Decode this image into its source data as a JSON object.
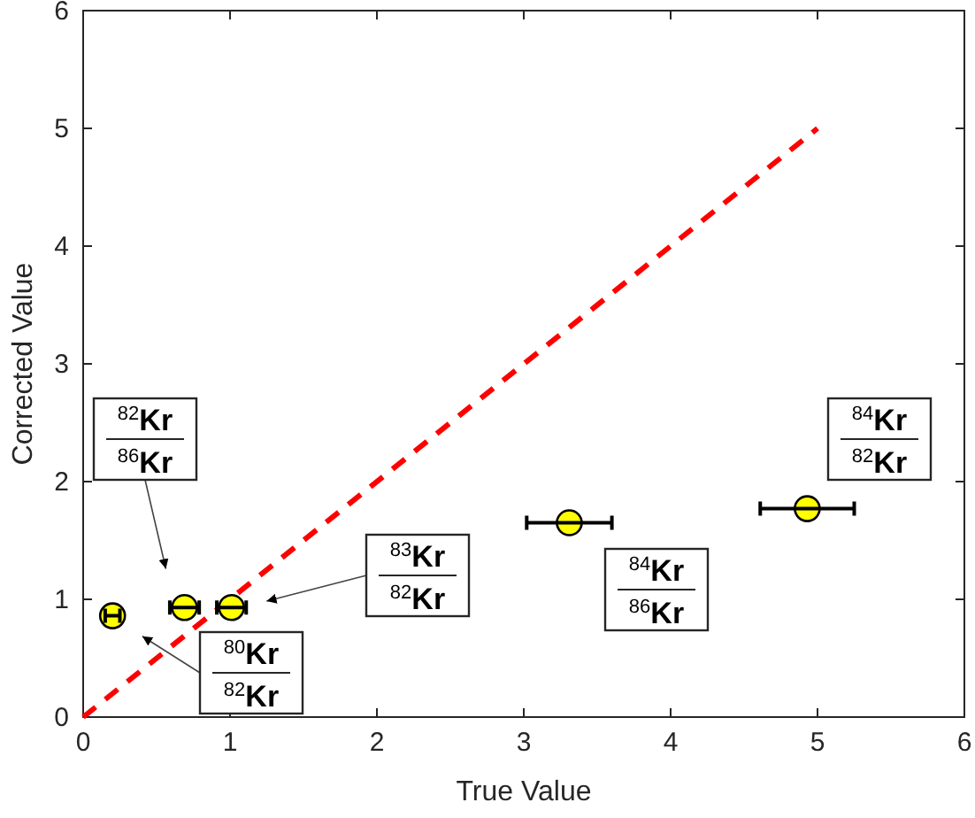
{
  "chart_data": {
    "type": "scatter",
    "xlabel": "True Value",
    "ylabel": "Corrected Value",
    "xlim": [
      0,
      6
    ],
    "ylim": [
      0,
      6
    ],
    "xticks": [
      0,
      1,
      2,
      3,
      4,
      5,
      6
    ],
    "yticks": [
      0,
      1,
      2,
      3,
      4,
      5,
      6
    ],
    "grid": false,
    "series": [
      {
        "type": "line",
        "color": "#ff0000",
        "line_style": "dashed",
        "marker": "none",
        "x": [
          0,
          5
        ],
        "values": [
          0,
          5
        ]
      },
      {
        "color": "#ffff00",
        "marker": "circle",
        "x": [
          0.2,
          0.69,
          1.01,
          3.31,
          4.93
        ],
        "values": [
          0.86,
          0.93,
          0.93,
          1.65,
          1.77
        ],
        "xerrors": [
          0.05,
          0.1,
          0.1,
          0.29,
          0.32
        ]
      }
    ],
    "annotations": [
      "$^{82}$Kr",
      "$^{86}$Kr",
      "$^{83}$Kr",
      "$^{82}$Kr",
      "$^{80}$Kr",
      "$^{82}$Kr",
      "$^{84}$Kr",
      "$^{86}$Kr",
      "$^{84}$Kr",
      "$^{82}$Kr"
    ]
  }
}
